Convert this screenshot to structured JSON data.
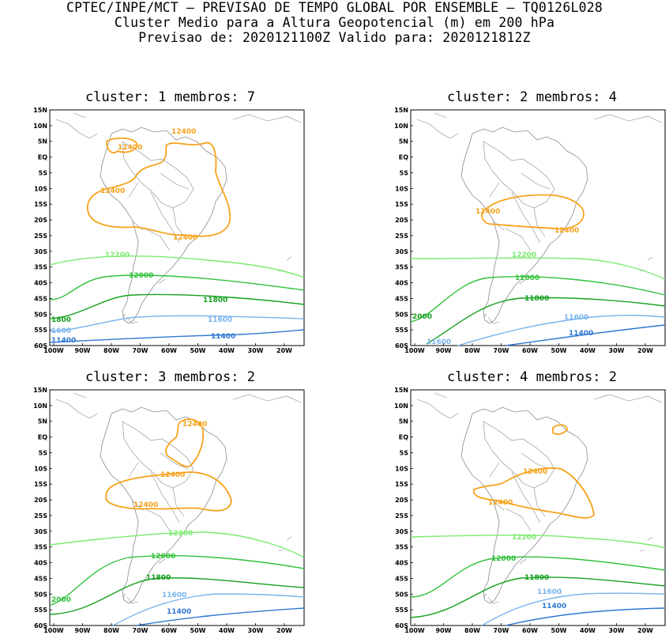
{
  "header": {
    "line1": "CPTEC/INPE/MCT – PREVISAO DE TEMPO GLOBAL POR ENSEMBLE – TQ0126L028",
    "line2": "Cluster Medio para a Altura Geopotencial (m) em 200 hPa",
    "line3": "Previsao de: 2020121100Z   Valido para: 2020121812Z"
  },
  "axes": {
    "lat_labels": [
      "15N",
      "10N",
      "5N",
      "EQ",
      "5S",
      "10S",
      "15S",
      "20S",
      "25S",
      "30S",
      "35S",
      "40S",
      "45S",
      "50S",
      "55S",
      "60S"
    ],
    "lon_labels": [
      "100W",
      "90W",
      "80W",
      "70W",
      "60W",
      "50W",
      "40W",
      "30W",
      "20W"
    ]
  },
  "colors": {
    "c12400": "#f6a21a",
    "c12200": "#7bea6e",
    "c12000": "#2fc03a",
    "c11800": "#14a01e",
    "c11600": "#78b4ee",
    "c11400": "#2f78d2",
    "map": "#8a8a8a"
  },
  "panels": [
    {
      "title": "cluster: 1   membros: 7",
      "labels": {
        "l12400a": "12400",
        "l12400b": "12400",
        "l12400c": "12400",
        "l12400d": "12400",
        "l12200": "12200",
        "l12000": "12000",
        "l11800": "11800",
        "l1800": "1800",
        "l11600": "11600",
        "l1600": "1600",
        "l11400": "11400",
        "l11400b": "11400"
      }
    },
    {
      "title": "cluster: 2   membros: 4",
      "labels": {
        "l12400a": "12400",
        "l12400b": "12400",
        "l12200": "12200",
        "l12000": "12000",
        "l11800": "11800",
        "l2000": "2000",
        "l11600": "11600",
        "l11600b": "11600",
        "l11400": "11400"
      }
    },
    {
      "title": "cluster: 3   membros: 2",
      "labels": {
        "l12400a": "12400",
        "l12400b": "12400",
        "l12400c": "12400",
        "l12200": "12200",
        "l12000": "12000",
        "l2000": "2000",
        "l11800": "11800",
        "l11600": "11600",
        "l11400": "11400"
      }
    },
    {
      "title": "cluster: 4   membros: 2",
      "labels": {
        "l12400a": "12400",
        "l12400b": "12400",
        "l12200": "12200",
        "l12000": "12000",
        "l11800": "11800",
        "l11600": "11600",
        "l11400": "11400"
      }
    }
  ]
}
